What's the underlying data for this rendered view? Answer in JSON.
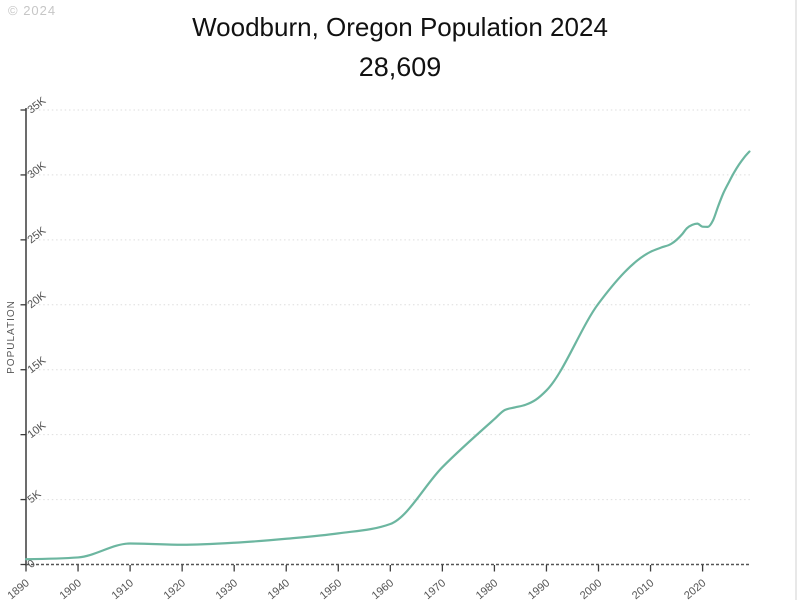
{
  "watermark": "© 2024",
  "header": {
    "title": "Woodburn, Oregon Population 2024",
    "subtitle": "28,609"
  },
  "chart_data": {
    "type": "line",
    "title": "Woodburn, Oregon Population 2024",
    "current_value_label": "28,609",
    "xlabel": "",
    "ylabel": "POPULATION",
    "legend": "none",
    "grid": "horizontal-dotted",
    "xlim": [
      1890,
      2029.3
    ],
    "ylim": [
      0,
      35000
    ],
    "x_ticks": [
      1890,
      1900,
      1910,
      1920,
      1930,
      1940,
      1950,
      1960,
      1970,
      1980,
      1990,
      2000,
      2010,
      2020
    ],
    "y_ticks": [
      {
        "value": 0,
        "label": "0"
      },
      {
        "value": 5000,
        "label": "5K"
      },
      {
        "value": 10000,
        "label": "10K"
      },
      {
        "value": 15000,
        "label": "15K"
      },
      {
        "value": 20000,
        "label": "20K"
      },
      {
        "value": 25000,
        "label": "25K"
      },
      {
        "value": 30000,
        "label": "30K"
      },
      {
        "value": 35000,
        "label": "35K"
      }
    ],
    "series": [
      {
        "name": "Population",
        "x": [
          1890,
          1900,
          1910,
          1920,
          1930,
          1940,
          1950,
          1960,
          1970,
          1980,
          1982,
          1984,
          1986,
          1988,
          1990,
          2000,
          2010,
          2012,
          2014,
          2015,
          2016,
          2017,
          2018,
          2019,
          2020,
          2021,
          2022,
          2023,
          2024,
          2025,
          2026,
          2027,
          2028,
          2029
        ],
        "values": [
          405,
          546,
          1616,
          1520,
          1675,
          1982,
          2395,
          3120,
          7495,
          11196,
          11900,
          12100,
          12300,
          12700,
          13404,
          20100,
          24080,
          24400,
          24700,
          25000,
          25400,
          25900,
          26150,
          26250,
          26013,
          26000,
          26500,
          27600,
          28609,
          29400,
          30150,
          30800,
          31350,
          31800
        ]
      }
    ],
    "colors": {
      "line": "#6cb6a0",
      "axis": "#3c3c3c",
      "tick_label": "#555555",
      "gridline": "#dedede",
      "title_text": "#111111",
      "watermark": "#c6c6c6",
      "right_border": "#e8e8e8"
    }
  }
}
